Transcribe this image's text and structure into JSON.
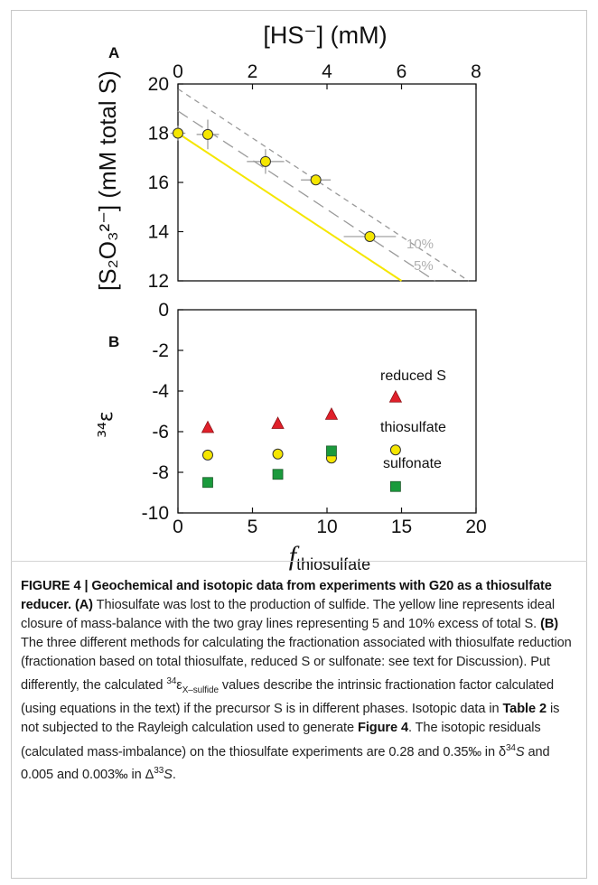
{
  "figure": {
    "panel_a_label": "A",
    "panel_b_label": "B",
    "top_axis_label": "[HS⁻] (mM)",
    "left_axis_a_label": "[S₂O₃²⁻] (mM total S)",
    "left_axis_b_label": "³⁴ε",
    "bottom_axis_label_main": "f",
    "bottom_axis_label_sub": "thiosulfate",
    "line_label_10": "10%",
    "line_label_5": "5%",
    "series_label_reduced": "reduced S",
    "series_label_thiosulfate": "thiosulfate",
    "series_label_sulfonate": "sulfonate"
  },
  "chart_data": [
    {
      "type": "scatter",
      "panel": "A",
      "x_axis": {
        "label": "[HS⁻] (mM)",
        "lim": [
          0,
          8
        ],
        "ticks": [
          0,
          2,
          4,
          6,
          8
        ],
        "position": "top"
      },
      "y_axis": {
        "label": "[S₂O₃²⁻] (mM total S)",
        "lim": [
          12,
          20
        ],
        "ticks": [
          12,
          14,
          16,
          18,
          20
        ]
      },
      "points": [
        {
          "x": 0.0,
          "y": 18.0,
          "xerr": 0.2,
          "yerr": 0.3
        },
        {
          "x": 0.8,
          "y": 17.95,
          "xerr": 0.3,
          "yerr": 0.6
        },
        {
          "x": 2.35,
          "y": 16.85,
          "xerr": 0.5,
          "yerr": 0.5
        },
        {
          "x": 3.7,
          "y": 16.1,
          "xerr": 0.4,
          "yerr": 0.0
        },
        {
          "x": 5.15,
          "y": 13.8,
          "xerr": 0.7,
          "yerr": 0.0
        }
      ],
      "lines": [
        {
          "name": "mass balance",
          "color": "#f5e600",
          "style": "solid",
          "x": [
            0,
            6.0
          ],
          "y": [
            18.0,
            12.0
          ]
        },
        {
          "name": "5%",
          "color": "#9a9a9a",
          "style": "long-dash",
          "x": [
            0,
            6.9
          ],
          "y": [
            18.9,
            12.0
          ]
        },
        {
          "name": "10%",
          "color": "#9a9a9a",
          "style": "short-dash",
          "x": [
            0,
            7.8
          ],
          "y": [
            19.8,
            12.0
          ]
        }
      ],
      "line_labels": [
        "10%",
        "5%"
      ]
    },
    {
      "type": "scatter",
      "panel": "B",
      "x_axis": {
        "label": "f thiosulfate",
        "lim": [
          0,
          20
        ],
        "ticks": [
          0,
          5,
          10,
          15,
          20
        ]
      },
      "y_axis": {
        "label": "³⁴ε",
        "lim": [
          -10,
          0
        ],
        "ticks": [
          -10,
          -8,
          -6,
          -4,
          -2,
          0
        ]
      },
      "series": [
        {
          "name": "reduced S",
          "marker": "triangle",
          "color": "#e0202a",
          "x": [
            2.0,
            6.7,
            10.3,
            14.6
          ],
          "y": [
            -5.8,
            -5.6,
            -5.15,
            -4.3
          ]
        },
        {
          "name": "thiosulfate",
          "marker": "circle",
          "color": "#f5e600",
          "x": [
            2.0,
            6.7,
            10.3,
            14.6
          ],
          "y": [
            -7.15,
            -7.1,
            -7.3,
            -6.9
          ]
        },
        {
          "name": "sulfonate",
          "marker": "square",
          "color": "#1a9a3c",
          "x": [
            2.0,
            6.7,
            10.3,
            14.6
          ],
          "y": [
            -8.5,
            -8.1,
            -6.95,
            -8.7
          ]
        }
      ]
    }
  ],
  "caption": {
    "bold_lead": "FIGURE 4 | Geochemical and isotopic data from experiments with G20 as a thiosulfate reducer.",
    "a_label": "(A)",
    "a_text": "Thiosulfate was lost to the production of sulfide. The yellow line represents ideal closure of mass-balance with the two gray lines representing 5 and 10% excess of total S.",
    "b_label": "(B)",
    "b_text1": "The three different methods for calculating the fractionation associated with thiosulfate reduction (fractionation based on total thiosulfate, reduced S or sulfonate: see text for Discussion). Put differently, the calculated",
    "b_sup": "34",
    "b_eps": "ε",
    "b_sub": "X–sulfide",
    "b_text2": "values describe the intrinsic fractionation factor calculated (using equations in the text) if the precursor S is in different phases. Isotopic data in",
    "table_ref": "Table 2",
    "b_text3": "is not subjected to the Rayleigh calculation used to generate",
    "figure_ref": "Figure 4",
    "b_text4": ". The isotopic residuals (calculated mass-imbalance) on the thiosulfate experiments are 0.28 and 0.35‰ in",
    "delta34": "δ",
    "delta34_sup": "34",
    "delta34_s": "S",
    "b_text5": "and 0.005 and 0.003‰ in",
    "cap_delta33": "Δ",
    "cap_delta33_sup": "33",
    "cap_delta33_s": "S",
    "period": "."
  }
}
